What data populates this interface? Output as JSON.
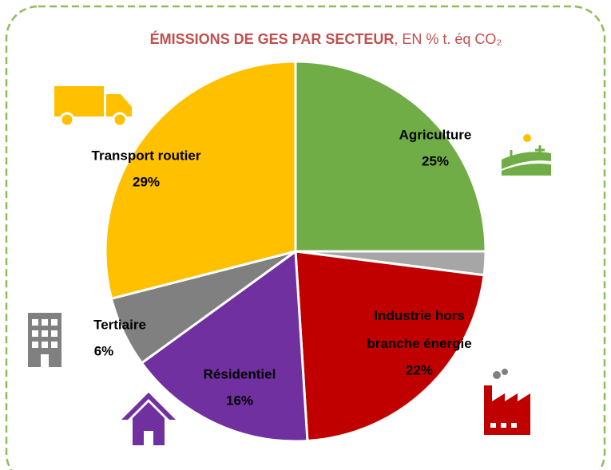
{
  "chart_data": {
    "type": "pie",
    "title": "ÉMISSIONS DE GES PAR SECTEUR",
    "subtitle": ", EN % t. éq CO₂",
    "categories": [
      "Agriculture",
      null,
      "Industrie hors branche énergie",
      "Résidentiel",
      "Tertiaire",
      "Transport routier"
    ],
    "values": [
      25,
      2,
      22,
      16,
      6,
      29
    ],
    "value_labels": [
      "25%",
      null,
      "22%",
      "16%",
      "6%",
      "29%"
    ],
    "colors": [
      "#70ad47",
      "#a6a6a6",
      "#c00000",
      "#7030a0",
      "#808080",
      "#ffc000"
    ]
  }
}
